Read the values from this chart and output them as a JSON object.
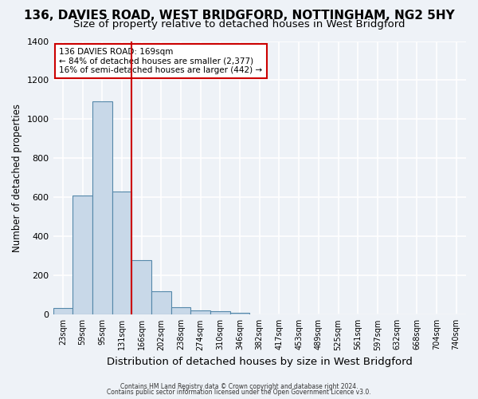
{
  "title1": "136, DAVIES ROAD, WEST BRIDGFORD, NOTTINGHAM, NG2 5HY",
  "title2": "Size of property relative to detached houses in West Bridgford",
  "xlabel": "Distribution of detached houses by size in West Bridgford",
  "ylabel": "Number of detached properties",
  "footnote1": "Contains HM Land Registry data © Crown copyright and database right 2024.",
  "footnote2": "Contains public sector information licensed under the Open Government Licence v3.0.",
  "bin_labels": [
    "23sqm",
    "59sqm",
    "95sqm",
    "131sqm",
    "166sqm",
    "202sqm",
    "238sqm",
    "274sqm",
    "310sqm",
    "346sqm",
    "382sqm",
    "417sqm",
    "453sqm",
    "489sqm",
    "525sqm",
    "561sqm",
    "597sqm",
    "632sqm",
    "668sqm",
    "704sqm",
    "740sqm"
  ],
  "bar_values": [
    35,
    610,
    1090,
    630,
    280,
    120,
    40,
    22,
    18,
    10,
    0,
    0,
    0,
    0,
    0,
    0,
    0,
    0,
    0,
    0,
    0
  ],
  "bar_color": "#c8d8e8",
  "bar_edge_color": "#5588aa",
  "vline_color": "#cc0000",
  "annotation_title": "136 DAVIES ROAD: 169sqm",
  "annotation_line1": "← 84% of detached houses are smaller (2,377)",
  "annotation_line2": "16% of semi-detached houses are larger (442) →",
  "annotation_box_color": "#cc0000",
  "ylim": [
    0,
    1400
  ],
  "yticks": [
    0,
    200,
    400,
    600,
    800,
    1000,
    1200,
    1400
  ],
  "background_color": "#eef2f7",
  "grid_color": "#ffffff",
  "title1_fontsize": 11,
  "title2_fontsize": 9.5,
  "xlabel_fontsize": 9.5,
  "ylabel_fontsize": 8.5
}
